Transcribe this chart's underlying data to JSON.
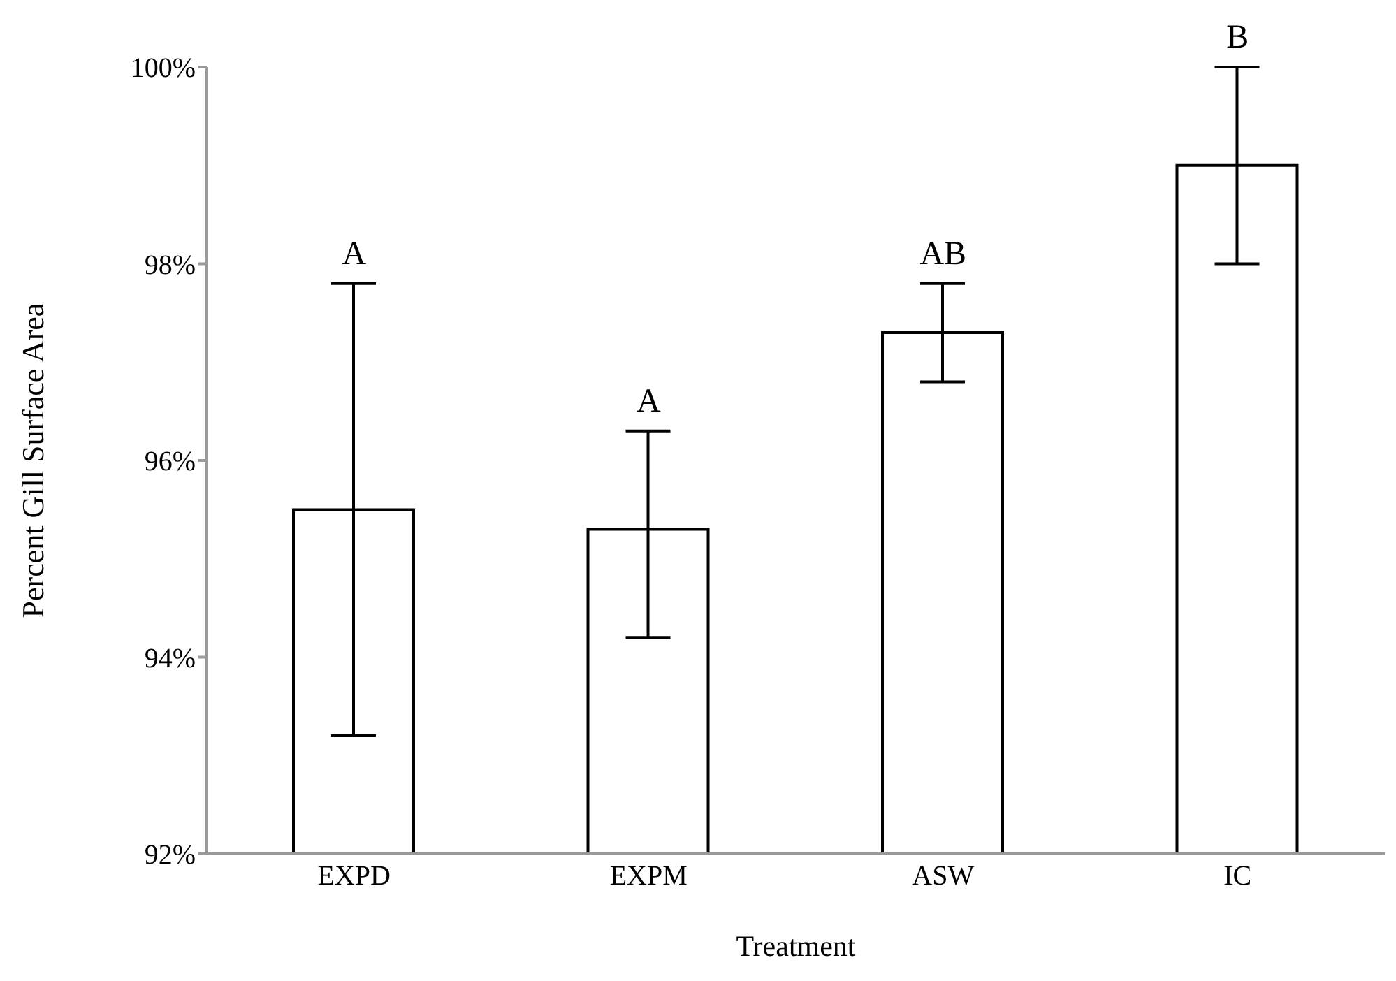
{
  "chart_data": {
    "type": "bar",
    "xlabel": "Treatment",
    "ylabel": "Percent  Gill Surface Area",
    "categories": [
      "EXPD",
      "EXPM",
      "ASW",
      "IC"
    ],
    "values": [
      95.5,
      95.3,
      97.3,
      99.0
    ],
    "errors": [
      [
        93.2,
        97.8
      ],
      [
        94.2,
        96.3
      ],
      [
        96.8,
        97.8
      ],
      [
        98.0,
        100.0
      ]
    ],
    "color": "#ffffff",
    "ylim": [
      92,
      100
    ],
    "yticks": [
      {
        "value": 92,
        "label": "92%"
      },
      {
        "value": 94,
        "label": "94%"
      },
      {
        "value": 96,
        "label": "96%"
      },
      {
        "value": 98,
        "label": "98%"
      },
      {
        "value": 100,
        "label": "100%"
      }
    ],
    "grid": false,
    "legend": false,
    "annotations": [
      {
        "text": "A",
        "x": "EXPD",
        "y": 97.8
      },
      {
        "text": "A",
        "x": "EXPM",
        "y": 96.3
      },
      {
        "text": "AB",
        "x": "ASW",
        "y": 97.8
      },
      {
        "text": "B",
        "x": "IC",
        "y": 100.0
      }
    ]
  }
}
